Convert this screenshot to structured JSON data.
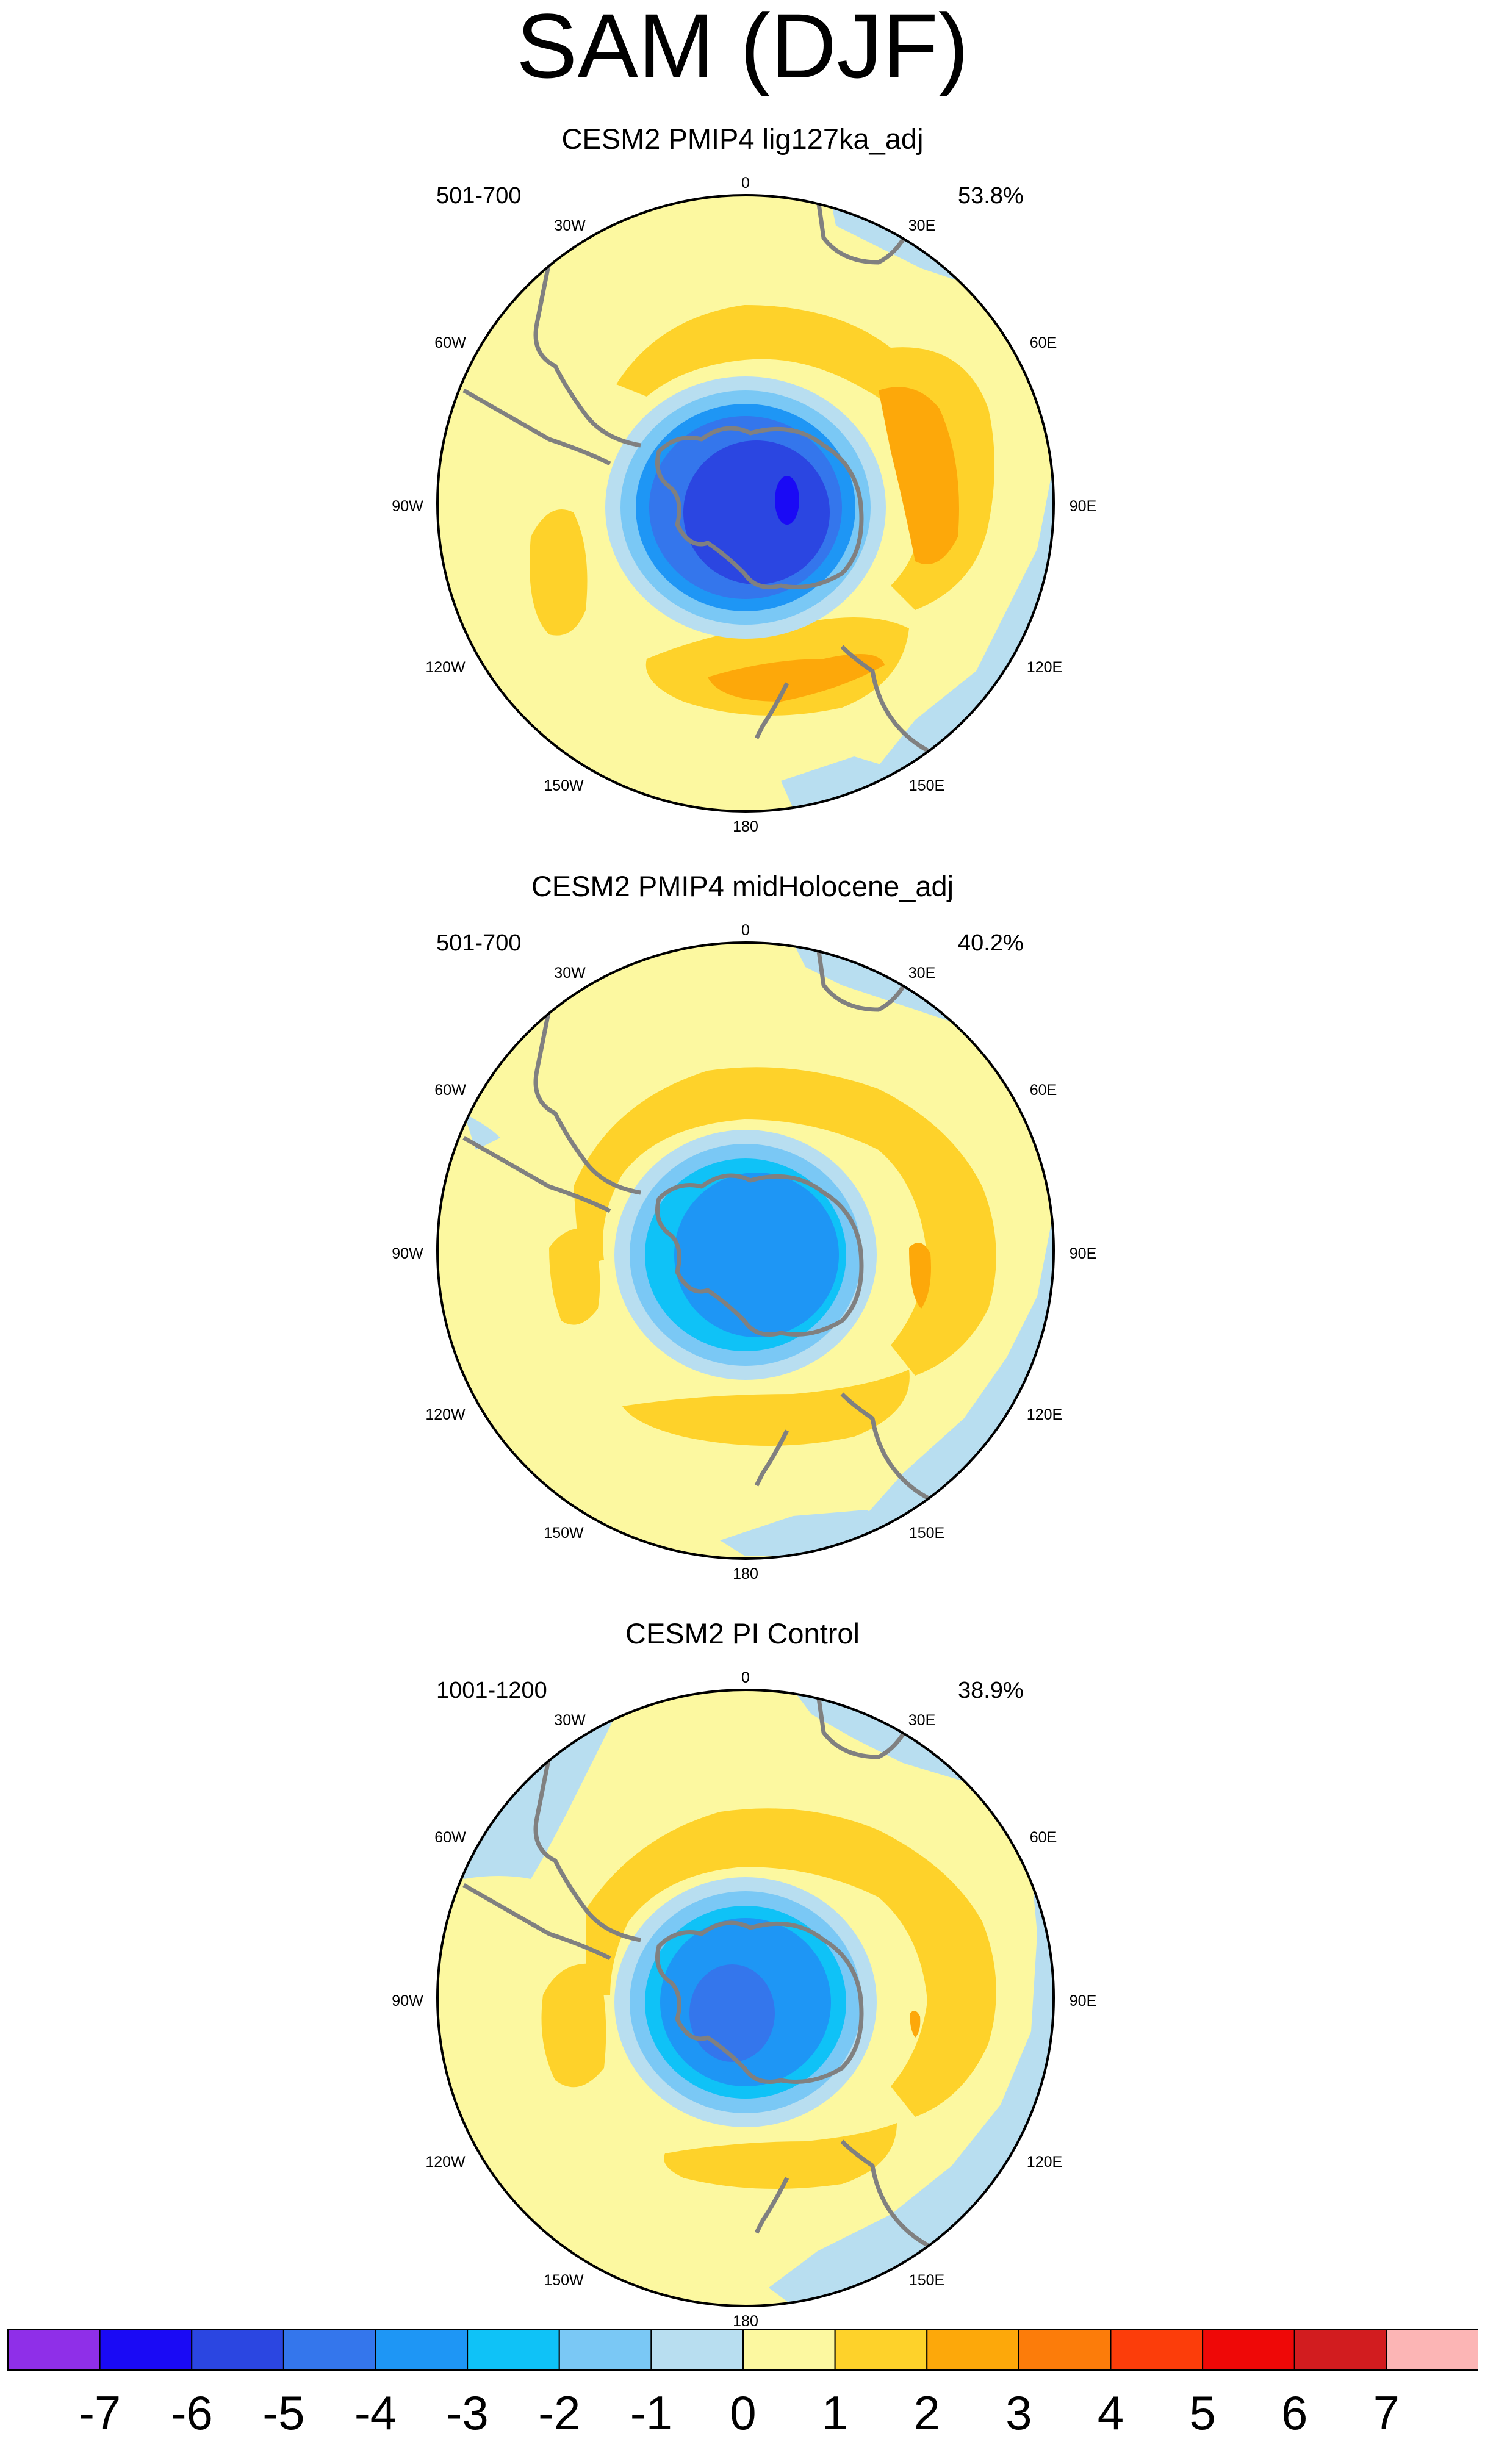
{
  "title": "SAM (DJF)",
  "lon_labels": [
    "0",
    "30E",
    "60E",
    "90E",
    "120E",
    "150E",
    "180",
    "150W",
    "120W",
    "90W",
    "60W",
    "30W"
  ],
  "panels": [
    {
      "title": "CESM2 PMIP4 lig127ka_adj",
      "years": "501-700",
      "percent": "53.8%"
    },
    {
      "title": "CESM2 PMIP4 midHolocene_adj",
      "years": "501-700",
      "percent": "40.2%"
    },
    {
      "title": "CESM2 PI Control",
      "years": "1001-1200",
      "percent": "38.9%"
    }
  ],
  "colorbar": {
    "colors": [
      "#8f2fe8",
      "#1a0af5",
      "#2b46e1",
      "#3476ec",
      "#1e96f5",
      "#0fc2f7",
      "#7ac8f5",
      "#b8def0",
      "#fcf8a0",
      "#fed22a",
      "#fda80a",
      "#fc7c0a",
      "#fc3d0a",
      "#ef0807",
      "#d21c1f",
      "#fcb5b5"
    ],
    "labels": [
      "-7",
      "-6",
      "-5",
      "-4",
      "-3",
      "-2",
      "-1",
      "0",
      "1",
      "2",
      "3",
      "4",
      "5",
      "6",
      "7"
    ]
  },
  "colors": {
    "continent_outline": "#808080",
    "map_border": "#000000"
  }
}
